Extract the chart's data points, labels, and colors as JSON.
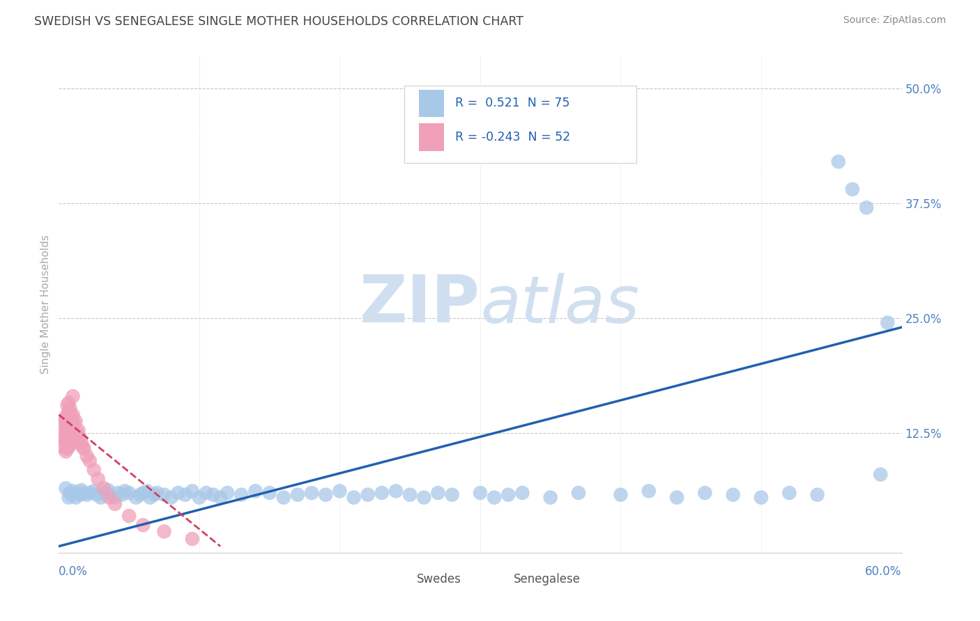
{
  "title": "SWEDISH VS SENEGALESE SINGLE MOTHER HOUSEHOLDS CORRELATION CHART",
  "source": "Source: ZipAtlas.com",
  "ylabel": "Single Mother Households",
  "xlim": [
    0.0,
    0.6
  ],
  "ylim": [
    -0.005,
    0.535
  ],
  "r_swedes": 0.521,
  "n_swedes": 75,
  "r_senegalese": -0.243,
  "n_senegalese": 52,
  "legend_label1": "Swedes",
  "legend_label2": "Senegalese",
  "blue_scatter_color": "#a8c8e8",
  "pink_scatter_color": "#f0a0b8",
  "blue_line_color": "#2060b0",
  "pink_line_color": "#d04060",
  "background_color": "#ffffff",
  "grid_color": "#c8c8c8",
  "watermark_color": "#d0dff0",
  "title_color": "#444444",
  "ytick_color": "#5080c0",
  "xtick_color": "#5080c0",
  "sw_line_x0": 0.0,
  "sw_line_x1": 0.6,
  "sw_line_y0": 0.002,
  "sw_line_y1": 0.24,
  "se_line_x0": 0.0,
  "se_line_x1": 0.115,
  "se_line_y0": 0.145,
  "se_line_y1": 0.002,
  "swedes_x": [
    0.005,
    0.007,
    0.008,
    0.009,
    0.01,
    0.012,
    0.013,
    0.015,
    0.016,
    0.018,
    0.02,
    0.022,
    0.025,
    0.027,
    0.03,
    0.032,
    0.035,
    0.037,
    0.04,
    0.042,
    0.045,
    0.047,
    0.05,
    0.055,
    0.058,
    0.06,
    0.063,
    0.065,
    0.068,
    0.07,
    0.075,
    0.08,
    0.085,
    0.09,
    0.095,
    0.1,
    0.105,
    0.11,
    0.115,
    0.12,
    0.13,
    0.14,
    0.15,
    0.16,
    0.17,
    0.18,
    0.19,
    0.2,
    0.21,
    0.22,
    0.23,
    0.24,
    0.25,
    0.26,
    0.27,
    0.28,
    0.3,
    0.31,
    0.32,
    0.33,
    0.35,
    0.37,
    0.4,
    0.42,
    0.44,
    0.46,
    0.48,
    0.5,
    0.52,
    0.54,
    0.555,
    0.565,
    0.575,
    0.585,
    0.59
  ],
  "swedes_y": [
    0.065,
    0.055,
    0.06,
    0.058,
    0.062,
    0.055,
    0.06,
    0.058,
    0.063,
    0.06,
    0.058,
    0.06,
    0.062,
    0.058,
    0.055,
    0.06,
    0.063,
    0.058,
    0.055,
    0.06,
    0.058,
    0.062,
    0.06,
    0.055,
    0.058,
    0.06,
    0.062,
    0.055,
    0.058,
    0.06,
    0.058,
    0.055,
    0.06,
    0.058,
    0.062,
    0.055,
    0.06,
    0.058,
    0.055,
    0.06,
    0.058,
    0.062,
    0.06,
    0.055,
    0.058,
    0.06,
    0.058,
    0.062,
    0.055,
    0.058,
    0.06,
    0.062,
    0.058,
    0.055,
    0.06,
    0.058,
    0.06,
    0.055,
    0.058,
    0.06,
    0.055,
    0.06,
    0.058,
    0.062,
    0.055,
    0.06,
    0.058,
    0.055,
    0.06,
    0.058,
    0.42,
    0.39,
    0.37,
    0.08,
    0.245
  ],
  "senegalese_x": [
    0.002,
    0.003,
    0.003,
    0.004,
    0.004,
    0.004,
    0.005,
    0.005,
    0.005,
    0.005,
    0.006,
    0.006,
    0.006,
    0.006,
    0.006,
    0.007,
    0.007,
    0.007,
    0.007,
    0.007,
    0.008,
    0.008,
    0.008,
    0.008,
    0.009,
    0.009,
    0.009,
    0.01,
    0.01,
    0.01,
    0.011,
    0.011,
    0.012,
    0.012,
    0.013,
    0.014,
    0.015,
    0.016,
    0.017,
    0.018,
    0.02,
    0.022,
    0.025,
    0.028,
    0.032,
    0.036,
    0.04,
    0.05,
    0.06,
    0.075,
    0.095,
    0.01
  ],
  "senegalese_y": [
    0.11,
    0.12,
    0.135,
    0.115,
    0.125,
    0.14,
    0.105,
    0.118,
    0.13,
    0.142,
    0.108,
    0.122,
    0.135,
    0.145,
    0.155,
    0.11,
    0.125,
    0.138,
    0.148,
    0.158,
    0.112,
    0.128,
    0.14,
    0.152,
    0.115,
    0.13,
    0.143,
    0.118,
    0.133,
    0.145,
    0.12,
    0.135,
    0.122,
    0.138,
    0.125,
    0.128,
    0.12,
    0.115,
    0.11,
    0.108,
    0.1,
    0.095,
    0.085,
    0.075,
    0.065,
    0.055,
    0.048,
    0.035,
    0.025,
    0.018,
    0.01,
    0.165
  ]
}
